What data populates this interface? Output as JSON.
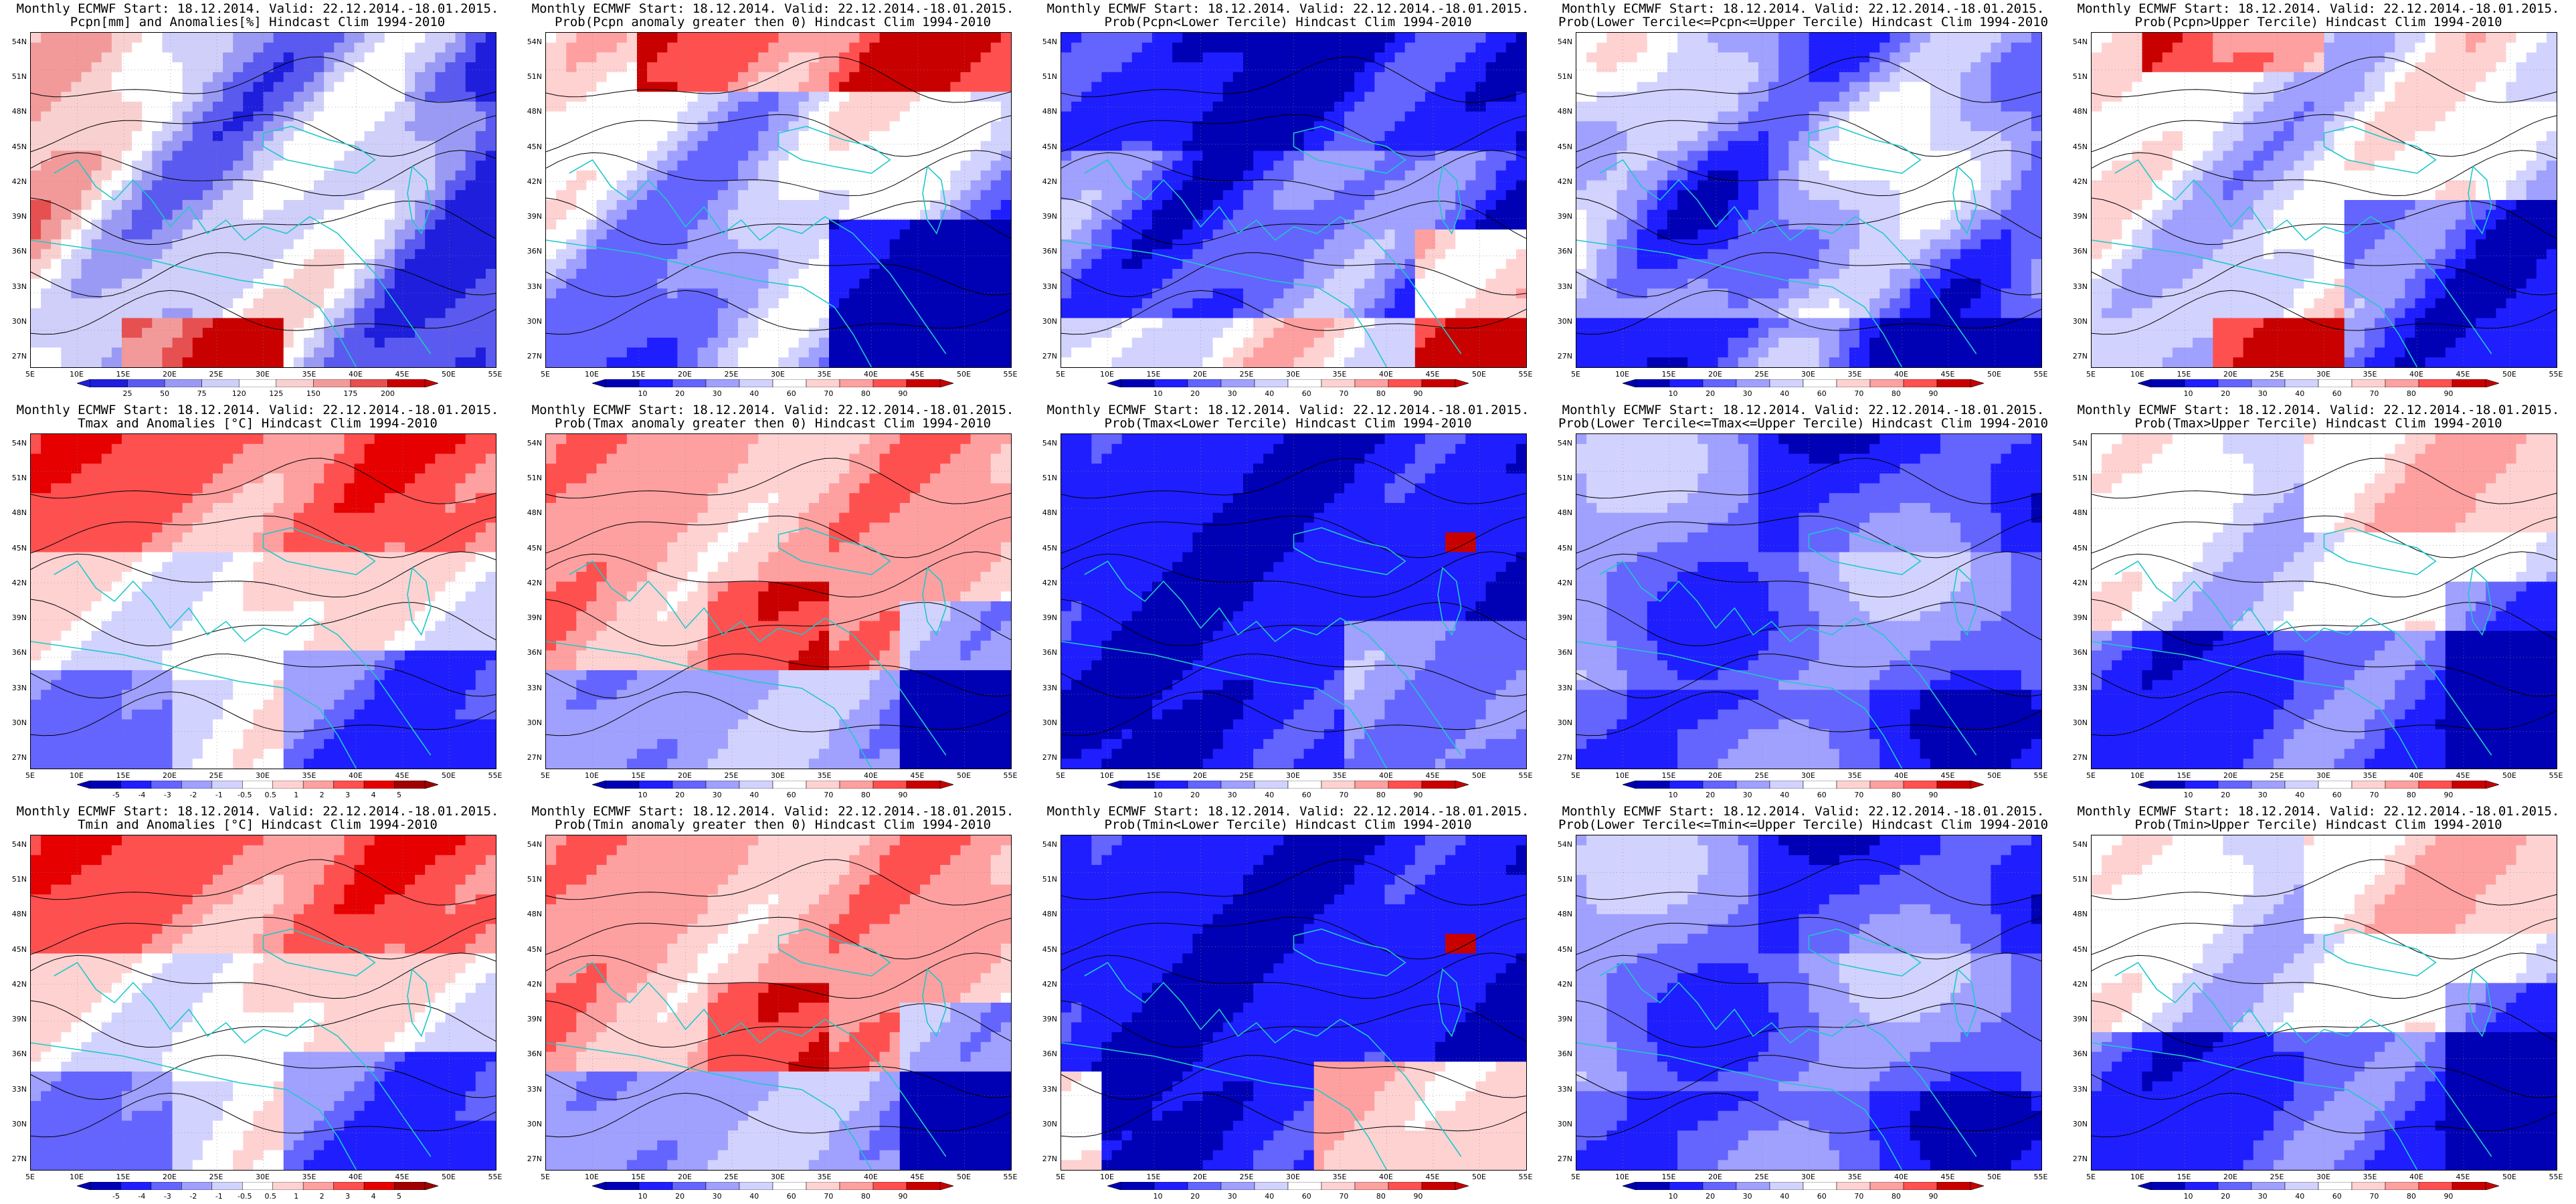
{
  "colors": {
    "precip_ramp": [
      "#1e1edc",
      "#5a5af0",
      "#9a9af5",
      "#cfcffa",
      "#ffffff",
      "#f9d0d0",
      "#f29a9a",
      "#e65050",
      "#c80000"
    ],
    "temp_ramp": [
      "#0000b4",
      "#1e1eff",
      "#6464ff",
      "#a0a0ff",
      "#d2d2ff",
      "#ffffff",
      "#ffd2d2",
      "#ffa0a0",
      "#ff5050",
      "#e60000",
      "#a00000"
    ],
    "prob_ramp": [
      "#0000b4",
      "#1e1eff",
      "#6464ff",
      "#a0a0ff",
      "#d2d2ff",
      "#ffffff",
      "#ffd2d2",
      "#ffa0a0",
      "#ff5050",
      "#c80000"
    ],
    "coast": "#20c8c8",
    "contour": "#000000"
  },
  "axes": {
    "lat_labels": [
      "54N",
      "51N",
      "48N",
      "45N",
      "42N",
      "39N",
      "36N",
      "33N",
      "30N",
      "27N"
    ],
    "lon_labels": [
      "5E",
      "10E",
      "15E",
      "20E",
      "25E",
      "30E",
      "35E",
      "40E",
      "45E",
      "50E",
      "55E"
    ]
  },
  "colorbars": {
    "precip": [
      "25",
      "50",
      "75",
      "120",
      "125",
      "150",
      "175",
      "200"
    ],
    "temp": [
      "-5",
      "-4",
      "-3",
      "-2",
      "-1",
      "-0.5",
      "0.5",
      "1",
      "2",
      "3",
      "4",
      "5"
    ],
    "prob": [
      "10",
      "20",
      "30",
      "40",
      "60",
      "70",
      "80",
      "90"
    ]
  },
  "panels": [
    {
      "id": "p0",
      "row": 0,
      "col": 0,
      "title1": "Monthly ECMWF Start: 18.12.2014. Valid: 22.12.2014.-18.01.2015.",
      "title2": "Pcpn[mm] and Anomalies[%] Hindcast Clim 1994-2010",
      "cbar": "precip",
      "scheme": "precip"
    },
    {
      "id": "p1",
      "row": 0,
      "col": 1,
      "title1": "Monthly ECMWF Start: 18.12.2014. Valid: 22.12.2014.-18.01.2015.",
      "title2": "Prob(Pcpn anomaly greater then 0) Hindcast Clim 1994-2010",
      "cbar": "prob",
      "scheme": "pcp_pos"
    },
    {
      "id": "p2",
      "row": 0,
      "col": 2,
      "title1": "Monthly ECMWF Start: 18.12.2014. Valid: 22.12.2014.-18.01.2015.",
      "title2": "Prob(Pcpn<Lower Tercile) Hindcast Clim 1994-2010",
      "cbar": "prob",
      "scheme": "pcp_low"
    },
    {
      "id": "p3",
      "row": 0,
      "col": 3,
      "title1": "Monthly ECMWF Start: 18.12.2014. Valid: 22.12.2014.-18.01.2015.",
      "title2": "Prob(Lower Tercile<=Pcpn<=Upper Tercile) Hindcast Clim 1994-2010",
      "cbar": "prob",
      "scheme": "pcp_mid"
    },
    {
      "id": "p4",
      "row": 0,
      "col": 4,
      "title1": "Monthly ECMWF Start: 18.12.2014. Valid: 22.12.2014.-18.01.2015.",
      "title2": "Prob(Pcpn>Upper Tercile) Hindcast Clim 1994-2010",
      "cbar": "prob",
      "scheme": "pcp_up"
    },
    {
      "id": "p5",
      "row": 1,
      "col": 0,
      "title1": "Monthly ECMWF Start: 18.12.2014. Valid: 22.12.2014.-18.01.2015.",
      "title2": "Tmax and Anomalies [°C] Hindcast Clim 1994-2010",
      "cbar": "temp",
      "scheme": "tanom"
    },
    {
      "id": "p6",
      "row": 1,
      "col": 1,
      "title1": "Monthly ECMWF Start: 18.12.2014. Valid: 22.12.2014.-18.01.2015.",
      "title2": "Prob(Tmax anomaly greater then 0) Hindcast Clim 1994-2010",
      "cbar": "prob",
      "scheme": "tpos"
    },
    {
      "id": "p7",
      "row": 1,
      "col": 2,
      "title1": "Monthly ECMWF Start: 18.12.2014. Valid: 22.12.2014.-18.01.2015.",
      "title2": "Prob(Tmax<Lower Tercile) Hindcast Clim 1994-2010",
      "cbar": "prob",
      "scheme": "tlow"
    },
    {
      "id": "p8",
      "row": 1,
      "col": 3,
      "title1": "Monthly ECMWF Start: 18.12.2014. Valid: 22.12.2014.-18.01.2015.",
      "title2": "Prob(Lower Tercile<=Tmax<=Upper Tercile) Hindcast Clim 1994-2010",
      "cbar": "prob",
      "scheme": "tmid"
    },
    {
      "id": "p9",
      "row": 1,
      "col": 4,
      "title1": "Monthly ECMWF Start: 18.12.2014. Valid: 22.12.2014.-18.01.2015.",
      "title2": "Prob(Tmax>Upper Tercile) Hindcast Clim 1994-2010",
      "cbar": "prob",
      "scheme": "tup"
    },
    {
      "id": "p10",
      "row": 2,
      "col": 0,
      "title1": "Monthly ECMWF Start: 18.12.2014. Valid: 22.12.2014.-18.01.2015.",
      "title2": "Tmin and Anomalies [°C] Hindcast Clim 1994-2010",
      "cbar": "temp",
      "scheme": "tanom"
    },
    {
      "id": "p11",
      "row": 2,
      "col": 1,
      "title1": "Monthly ECMWF Start: 18.12.2014. Valid: 22.12.2014.-18.01.2015.",
      "title2": "Prob(Tmin anomaly greater then 0) Hindcast Clim 1994-2010",
      "cbar": "prob",
      "scheme": "tpos"
    },
    {
      "id": "p12",
      "row": 2,
      "col": 2,
      "title1": "Monthly ECMWF Start: 18.12.2014. Valid: 22.12.2014.-18.01.2015.",
      "title2": "Prob(Tmin<Lower Tercile) Hindcast Clim 1994-2010",
      "cbar": "prob",
      "scheme": "tlow2"
    },
    {
      "id": "p13",
      "row": 2,
      "col": 3,
      "title1": "Monthly ECMWF Start: 18.12.2014. Valid: 22.12.2014.-18.01.2015.",
      "title2": "Prob(Lower Tercile<=Tmin<=Upper Tercile) Hindcast Clim 1994-2010",
      "cbar": "prob",
      "scheme": "tmid"
    },
    {
      "id": "p14",
      "row": 2,
      "col": 4,
      "title1": "Monthly ECMWF Start: 18.12.2014. Valid: 22.12.2014.-18.01.2015.",
      "title2": "Prob(Tmin>Upper Tercile) Hindcast Clim 1994-2010",
      "cbar": "prob",
      "scheme": "tup"
    }
  ]
}
